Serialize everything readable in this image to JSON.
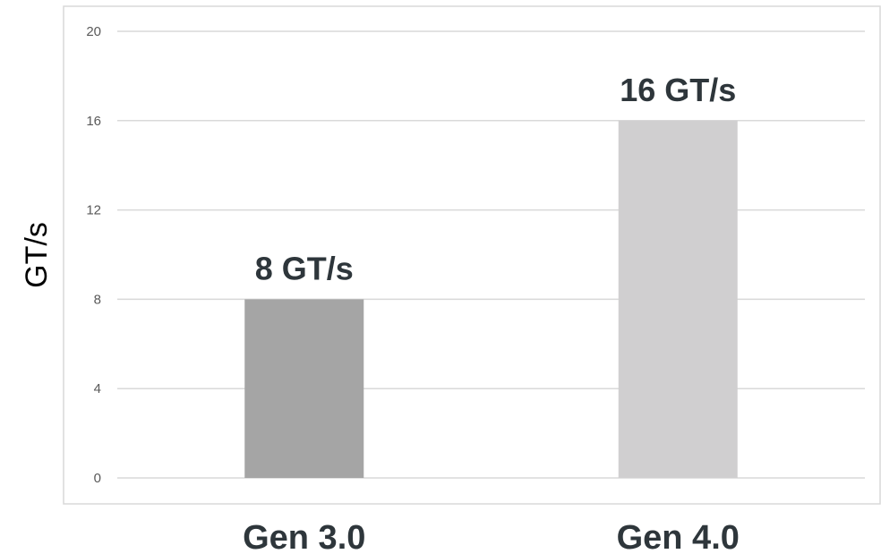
{
  "chart_data": {
    "type": "bar",
    "categories": [
      "Gen 3.0",
      "Gen 4.0"
    ],
    "values": [
      8,
      16
    ],
    "data_labels": [
      "8 GT/s",
      "16 GT/s"
    ],
    "title": "",
    "xlabel": "",
    "ylabel": "GT/s",
    "ylim": [
      0,
      20
    ],
    "yticks": [
      0,
      4,
      8,
      12,
      16,
      20
    ],
    "grid": true,
    "legend": "none",
    "colors": [
      "#a5a5a5",
      "#d0cfd0"
    ]
  }
}
